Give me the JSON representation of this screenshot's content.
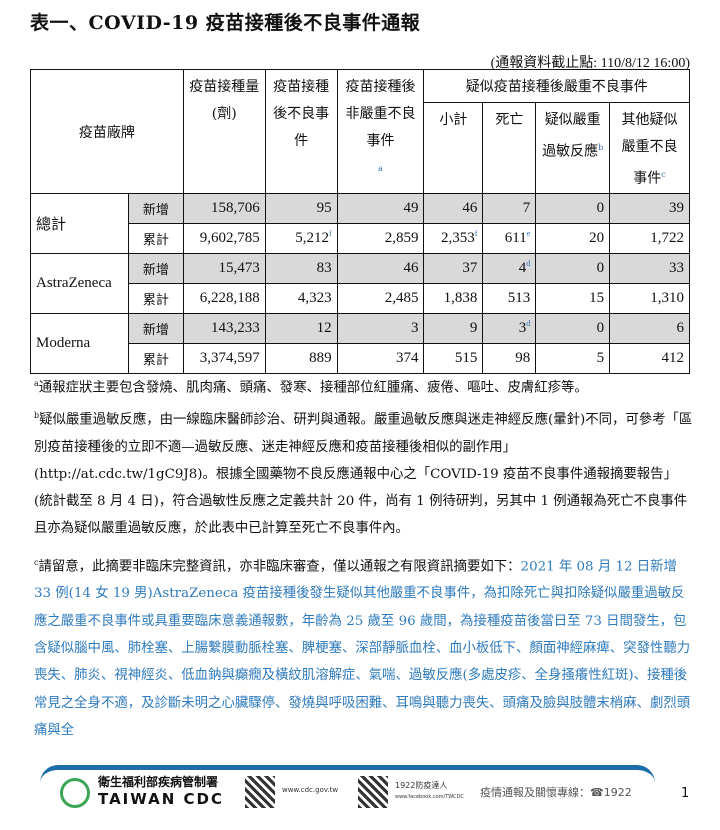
{
  "title": "表一、COVID-19 疫苗接種後不良事件通報",
  "as_of": "(通報資料截止點: 110/8/12 16:00)",
  "table": {
    "headers": {
      "brand": "疫苗廠牌",
      "doses": "疫苗接種量(劑)",
      "ae": "疫苗接種後不良事件",
      "nonserious": "疫苗接種後非嚴重不良事件",
      "nonserious_note": "a",
      "serious_group": "疑似疫苗接種後嚴重不良事件",
      "subtotal": "小計",
      "death": "死亡",
      "anaphylaxis": "疑似嚴重過敏反應",
      "anaphylaxis_note": "b",
      "other": "其他疑似嚴重不良事件",
      "other_note": "c"
    },
    "rows": [
      {
        "brand": "總計",
        "sub": "新增",
        "doses": "158,706",
        "ae": "95",
        "ae_note": "",
        "nonserious": "49",
        "subtotal": "46",
        "subtotal_note": "",
        "death": "7",
        "death_note": "",
        "anaphylaxis": "0",
        "other": "39"
      },
      {
        "brand": "",
        "sub": "累計",
        "doses": "9,602,785",
        "ae": "5,212",
        "ae_note": "f",
        "nonserious": "2,859",
        "subtotal": "2,353",
        "subtotal_note": "f",
        "death": "611",
        "death_note": "e",
        "anaphylaxis": "20",
        "other": "1,722"
      },
      {
        "brand": "AstraZeneca",
        "sub": "新增",
        "doses": "15,473",
        "ae": "83",
        "ae_note": "",
        "nonserious": "46",
        "subtotal": "37",
        "subtotal_note": "",
        "death": "4",
        "death_note": "d",
        "anaphylaxis": "0",
        "other": "33"
      },
      {
        "brand": "",
        "sub": "累計",
        "doses": "6,228,188",
        "ae": "4,323",
        "ae_note": "",
        "nonserious": "2,485",
        "subtotal": "1,838",
        "subtotal_note": "",
        "death": "513",
        "death_note": "",
        "anaphylaxis": "15",
        "other": "1,310"
      },
      {
        "brand": "Moderna",
        "sub": "新增",
        "doses": "143,233",
        "ae": "12",
        "ae_note": "",
        "nonserious": "3",
        "subtotal": "9",
        "subtotal_note": "",
        "death": "3",
        "death_note": "d",
        "anaphylaxis": "0",
        "other": "6"
      },
      {
        "brand": "",
        "sub": "累計",
        "doses": "3,374,597",
        "ae": "889",
        "ae_note": "",
        "nonserious": "374",
        "subtotal": "515",
        "subtotal_note": "",
        "death": "98",
        "death_note": "",
        "anaphylaxis": "5",
        "other": "412"
      }
    ]
  },
  "notes": {
    "a_mark": "a",
    "a": "通報症狀主要包含發燒、肌肉痛、頭痛、發寒、接種部位紅腫痛、疲倦、嘔吐、皮膚紅疹等。",
    "b_mark": "b",
    "b": "疑似嚴重過敏反應，由一線臨床醫師診治、研判與通報。嚴重過敏反應與迷走神經反應(暈針)不同，可參考「區別疫苗接種後的立即不適—過敏反應、迷走神經反應和疫苗接種後相似的副作用」(http://at.cdc.tw/1gC9J8)。根據全國藥物不良反應通報中心之「COVID-19 疫苗不良事件通報摘要報告」(統計截至 8 月 4 日)，符合過敏性反應之定義共計 20 件，尚有 1 例待研判，另其中 1 例通報為死亡不良事件且亦為疑似嚴重過敏反應，於此表中已計算至死亡不良事件內。",
    "c_mark": "c",
    "c_black": "請留意，此摘要非臨床完整資訊，亦非臨床審查，僅以通報之有限資訊摘要如下：",
    "c_blue": "2021 年 08 月 12 日新增 33 例(14 女 19 男)AstraZeneca 疫苗接種後發生疑似其他嚴重不良事件，為扣除死亡與扣除疑似嚴重過敏反應之嚴重不良事件或具重要臨床意義通報數，年齡為 25 歲至 96 歲間，為接種疫苗後當日至 73 日間發生，包含疑似腦中風、肺栓塞、上腸繫膜動脈栓塞、脾梗塞、深部靜脈血栓、血小板低下、顏面神經麻痺、突發性聽力喪失、肺炎、視神經炎、低血鈉與癲癇及橫紋肌溶解症、氣喘、過敏反應(多處皮疹、全身搔癢性紅斑)、接種後常見之全身不適，及診斷未明之心臟驟停、發燒與呼吸困難、耳鳴與聽力喪失、頭痛及臉與肢體末梢麻、劇烈頭痛與全"
  },
  "footer": {
    "org_zh": "衛生福利部疾病管制署",
    "org_en": "TAIWAN CDC",
    "site": "www.cdc.gov.tw",
    "fb_label": "1922防疫達人",
    "fb_url": "www.facebook.com/TWCDC",
    "hotline": "疫情通報及關懷專線：☎1922",
    "accent": "#1d6ea8"
  },
  "page_number": "1"
}
